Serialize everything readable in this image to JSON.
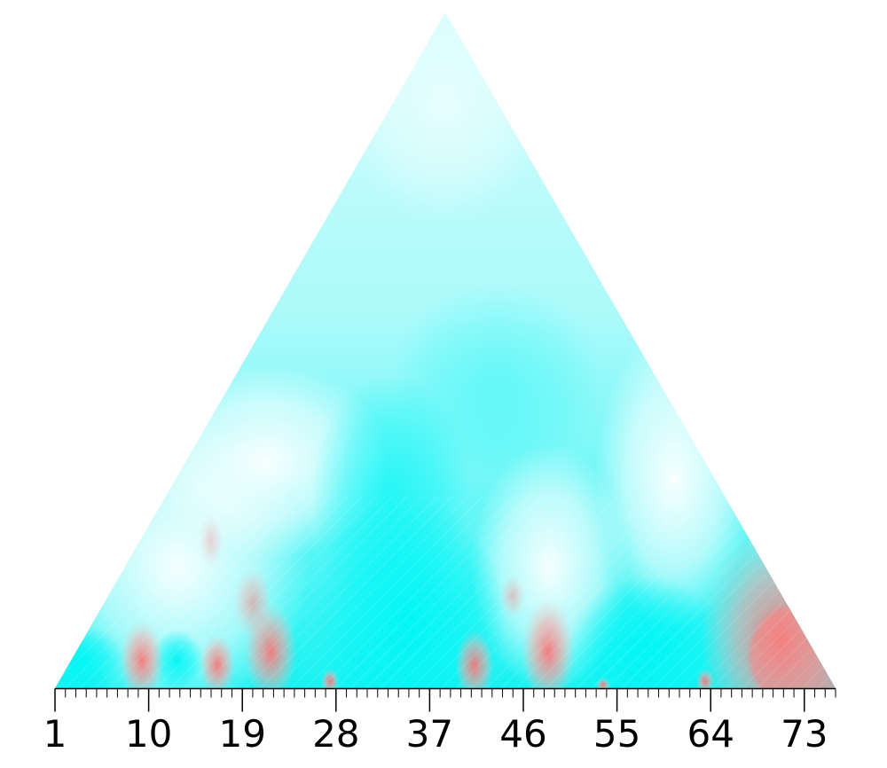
{
  "chart_data": {
    "type": "heatmap",
    "shape": "triangle",
    "x_ticks": [
      "1",
      "10",
      "19",
      "28",
      "37",
      "46",
      "55",
      "64",
      "73"
    ],
    "xlim": [
      1,
      75
    ],
    "colors": {
      "low": "#00ffff",
      "mid": "#ffffff",
      "high": "#ff7f7f"
    },
    "grid": false,
    "legend": "none"
  }
}
